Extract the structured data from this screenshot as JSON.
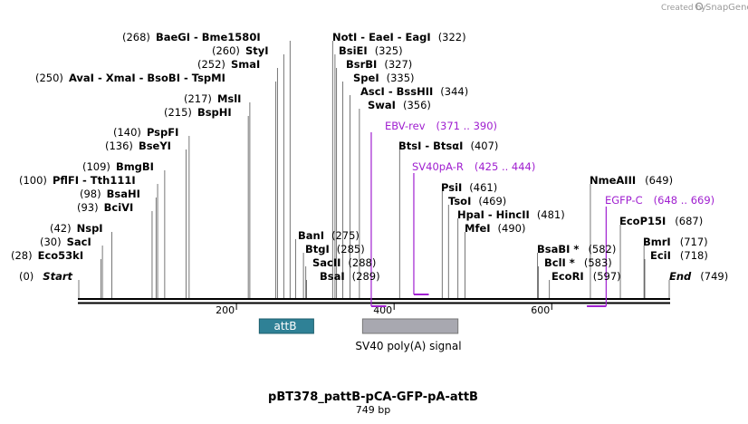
{
  "credit": {
    "text": "Created by",
    "brand": "SnapGene"
  },
  "title": "pBT378_pattB-pCA-GFP-pA-attB",
  "length_text": "749 bp",
  "sequence_length": 749,
  "axis_ticks": [
    {
      "value": 200,
      "label": "200"
    },
    {
      "value": 400,
      "label": "400"
    },
    {
      "value": 600,
      "label": "600"
    }
  ],
  "features": [
    {
      "name": "attB",
      "start": 229,
      "end": 298,
      "color": "#2f8196"
    },
    {
      "name": "SV40 poly(A) signal",
      "start": 360,
      "end": 481,
      "color": "#a8a8b0"
    }
  ],
  "primers": [
    {
      "name": "EBV-rev",
      "range": "(371 .. 390)",
      "start": 371,
      "end": 390,
      "color": "#a020d0"
    },
    {
      "name": "SV40pA-R",
      "range": "(425 .. 444)",
      "start": 425,
      "end": 444,
      "color": "#a020d0"
    },
    {
      "name": "EGFP-C",
      "range": "(648 .. 669)",
      "start": 648,
      "end": 669,
      "color": "#a020d0"
    }
  ],
  "labels": {
    "start": {
      "name": "Start",
      "pos": "(0)"
    },
    "eco53ki": {
      "name": "Eco53kI",
      "pos": "(28)"
    },
    "saci": {
      "name": "SacI",
      "pos": "(30)"
    },
    "nspi": {
      "name": "NspI",
      "pos": "(42)"
    },
    "bcivi": {
      "name": "BciVI",
      "pos": "(93)"
    },
    "bsahi": {
      "name": "BsaHI",
      "pos": "(98)"
    },
    "pflfi": {
      "name": "PflFI  - Tth111I",
      "pos": "(100)"
    },
    "bmgbi": {
      "name": "BmgBI",
      "pos": "(109)"
    },
    "bseyi": {
      "name": "BseYI",
      "pos": "(136)"
    },
    "pspfi": {
      "name": "PspFI",
      "pos": "(140)"
    },
    "bsphi": {
      "name": "BspHI",
      "pos": "(215)"
    },
    "msli": {
      "name": "MslI",
      "pos": "(217)"
    },
    "avai": {
      "name": "AvaI  - XmaI  - BsoBI  - TspMI",
      "pos": "(250)"
    },
    "smai": {
      "name": "SmaI",
      "pos": "(252)"
    },
    "styi": {
      "name": "StyI",
      "pos": "(260)"
    },
    "baegi": {
      "name": "BaeGI  - Bme1580I",
      "pos": "(268)"
    },
    "bani": {
      "name": "BanI",
      "pos": "(275)"
    },
    "btgi": {
      "name": "BtgI",
      "pos": "(285)"
    },
    "sacii": {
      "name": "SacII",
      "pos": "(288)"
    },
    "bsai": {
      "name": "BsaI",
      "pos": "(289)"
    },
    "noti": {
      "name": "NotI  - EaeI  - EagI",
      "pos": "(322)"
    },
    "bsiei": {
      "name": "BsiEI",
      "pos": "(325)"
    },
    "bsrbi": {
      "name": "BsrBI",
      "pos": "(327)"
    },
    "spei": {
      "name": "SpeI",
      "pos": "(335)"
    },
    "asci": {
      "name": "AscI  - BssHII",
      "pos": "(344)"
    },
    "swai": {
      "name": "SwaI",
      "pos": "(356)"
    },
    "btsi": {
      "name": "BtsI  - BtsαI",
      "pos": "(407)"
    },
    "psii": {
      "name": "PsiI",
      "pos": "(461)"
    },
    "tsoi": {
      "name": "TsoI",
      "pos": "(469)"
    },
    "hpai": {
      "name": "HpaI  - HincII",
      "pos": "(481)"
    },
    "mfei": {
      "name": "MfeI",
      "pos": "(490)"
    },
    "bsabi": {
      "name": "BsaBI *",
      "pos": "(582)"
    },
    "bcli": {
      "name": "BclI *",
      "pos": "(583)"
    },
    "ecori": {
      "name": "EcoRI",
      "pos": "(597)"
    },
    "nmeaiii": {
      "name": "NmeAIII",
      "pos": "(649)"
    },
    "ecop15i": {
      "name": "EcoP15I",
      "pos": "(687)"
    },
    "bmri": {
      "name": "BmrI",
      "pos": "(717)"
    },
    "ecii": {
      "name": "EciI",
      "pos": "(718)"
    },
    "end": {
      "name": "End",
      "pos": "(749)"
    }
  },
  "sites": [
    0,
    28,
    30,
    42,
    93,
    98,
    100,
    109,
    136,
    140,
    215,
    217,
    250,
    252,
    260,
    268,
    275,
    285,
    288,
    289,
    322,
    325,
    327,
    335,
    344,
    356,
    407,
    461,
    469,
    481,
    490,
    582,
    583,
    597,
    649,
    687,
    717,
    718,
    749
  ]
}
